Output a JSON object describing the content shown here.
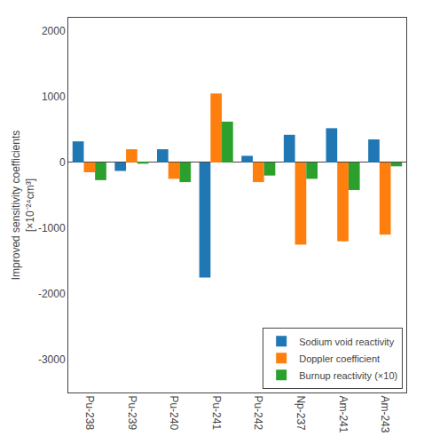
{
  "chart_data": {
    "type": "bar",
    "categories": [
      "Pu-238",
      "Pu-239",
      "Pu-240",
      "Pu-241",
      "Pu-242",
      "Np-237",
      "Am-241",
      "Am-243"
    ],
    "series": [
      {
        "name": "Sodium void reactivity",
        "values": [
          320,
          -130,
          200,
          -1750,
          100,
          420,
          520,
          350
        ]
      },
      {
        "name": "Doppler coefficient",
        "values": [
          -150,
          200,
          -250,
          1050,
          -300,
          -1250,
          -1200,
          -1100
        ]
      },
      {
        "name": "Burnup reactivity (×10)",
        "values": [
          -270,
          -20,
          -300,
          620,
          -200,
          -250,
          -420,
          -60
        ]
      }
    ],
    "ylabel": "Improved sensitivity coefficients\n[×10⁻²⁴cm³]",
    "ylim": [
      -3500,
      2200
    ],
    "yticks": [
      -3000,
      -2000,
      -1000,
      0,
      1000,
      2000
    ],
    "grid": false,
    "legend": "lower right"
  }
}
